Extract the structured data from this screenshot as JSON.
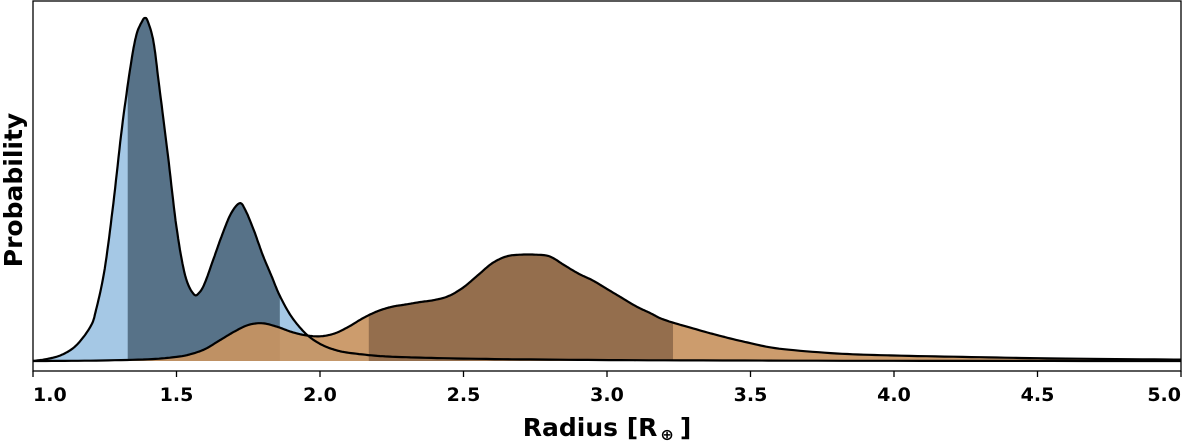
{
  "chart_data": {
    "type": "area",
    "title": "",
    "xlabel_main": "Radius [R",
    "xlabel_symbol": "⊕",
    "xlabel_end": "]",
    "ylabel": "Probability",
    "xlim": [
      1.0,
      5.0
    ],
    "ylim": [
      0,
      1.0
    ],
    "y_ticks_shown": false,
    "grid": false,
    "x_ticks": [
      "1.0",
      "1.5",
      "2.0",
      "2.5",
      "3.0",
      "3.5",
      "4.0",
      "4.5",
      "5.0"
    ],
    "series": [
      {
        "color_light": "#9dc3e3",
        "color_dark": "#506a80",
        "shaded_interval": [
          1.33,
          1.86
        ],
        "outer_interval": [
          1.22,
          2.05
        ],
        "x": [
          1.0,
          1.05,
          1.1,
          1.15,
          1.2,
          1.22,
          1.25,
          1.28,
          1.31,
          1.34,
          1.36,
          1.38,
          1.39,
          1.4,
          1.42,
          1.44,
          1.47,
          1.5,
          1.53,
          1.56,
          1.58,
          1.6,
          1.63,
          1.66,
          1.69,
          1.72,
          1.74,
          1.77,
          1.8,
          1.83,
          1.86,
          1.9,
          1.95,
          2.0,
          2.05,
          2.1,
          2.2,
          2.3,
          2.5,
          2.8,
          3.2,
          4.0,
          5.0
        ],
        "y": [
          0.0,
          0.006,
          0.018,
          0.045,
          0.1,
          0.15,
          0.27,
          0.46,
          0.68,
          0.86,
          0.95,
          0.99,
          1.0,
          0.99,
          0.93,
          0.8,
          0.6,
          0.39,
          0.25,
          0.195,
          0.2,
          0.23,
          0.3,
          0.37,
          0.43,
          0.46,
          0.44,
          0.38,
          0.31,
          0.25,
          0.19,
          0.13,
          0.08,
          0.05,
          0.033,
          0.024,
          0.015,
          0.011,
          0.007,
          0.004,
          0.002,
          0.0005,
          0.0
        ]
      },
      {
        "color_light": "#c89461",
        "color_dark": "#8f6a4b",
        "shaded_interval": [
          2.17,
          3.23
        ],
        "outer_interval": [
          1.7,
          4.2
        ],
        "x": [
          1.0,
          1.2,
          1.4,
          1.5,
          1.55,
          1.6,
          1.65,
          1.7,
          1.75,
          1.8,
          1.85,
          1.9,
          1.95,
          2.0,
          2.05,
          2.1,
          2.15,
          2.2,
          2.25,
          2.3,
          2.35,
          2.4,
          2.45,
          2.5,
          2.55,
          2.6,
          2.65,
          2.7,
          2.75,
          2.8,
          2.85,
          2.9,
          2.95,
          3.0,
          3.05,
          3.1,
          3.15,
          3.2,
          3.3,
          3.4,
          3.5,
          3.6,
          3.8,
          4.0,
          4.3,
          4.6,
          5.0
        ],
        "y": [
          0.0,
          0.001,
          0.005,
          0.012,
          0.02,
          0.035,
          0.06,
          0.085,
          0.105,
          0.11,
          0.1,
          0.085,
          0.075,
          0.072,
          0.08,
          0.1,
          0.125,
          0.145,
          0.158,
          0.165,
          0.172,
          0.178,
          0.19,
          0.215,
          0.25,
          0.285,
          0.305,
          0.31,
          0.31,
          0.305,
          0.28,
          0.255,
          0.235,
          0.21,
          0.185,
          0.16,
          0.14,
          0.12,
          0.095,
          0.072,
          0.052,
          0.036,
          0.022,
          0.016,
          0.011,
          0.007,
          0.004
        ]
      }
    ]
  }
}
